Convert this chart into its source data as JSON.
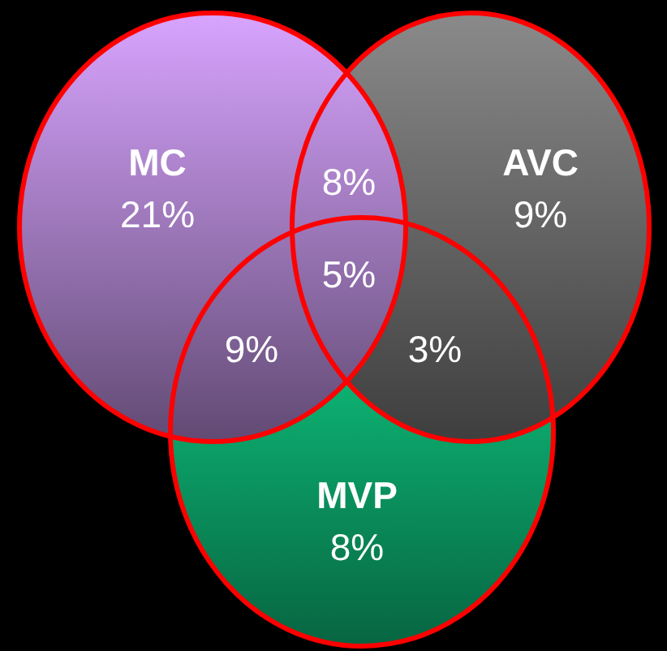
{
  "chart_data": {
    "type": "other",
    "categories": [
      "MC",
      "AVC",
      "MVP"
    ],
    "values": [
      21,
      9,
      8
    ],
    "value_labels": [
      "21%",
      "9%",
      "8%"
    ],
    "colors": [
      "#d8a4ff",
      "#8a8a8a",
      "#10e090"
    ],
    "annotations": [
      "8%",
      "9%",
      "3%",
      "5%"
    ]
  }
}
